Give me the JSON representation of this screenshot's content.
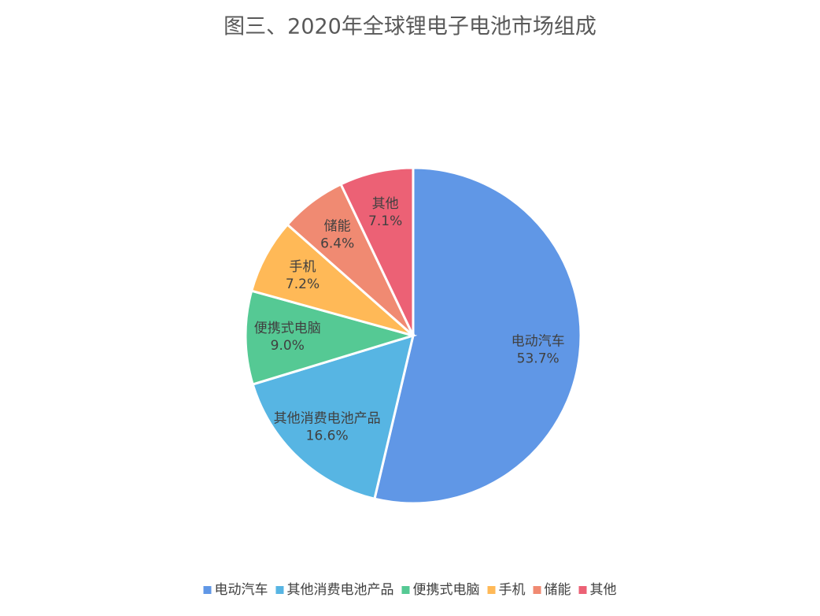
{
  "chart_data": {
    "type": "pie",
    "title": "图三、2020年全球锂电子电池市场组成",
    "categories": [
      "电动汽车",
      "其他消费电池产品",
      "便携式电脑",
      "手机",
      "储能",
      "其他"
    ],
    "values": [
      53.7,
      16.6,
      9.0,
      7.2,
      6.4,
      7.1
    ],
    "value_labels": [
      "53.7%",
      "16.6%",
      "9.0%",
      "7.2%",
      "6.4%",
      "7.1%"
    ],
    "colors": [
      "#6097e6",
      "#57b5e3",
      "#55c994",
      "#ffb957",
      "#f08a72",
      "#ec6175"
    ],
    "legend": "bottom"
  }
}
